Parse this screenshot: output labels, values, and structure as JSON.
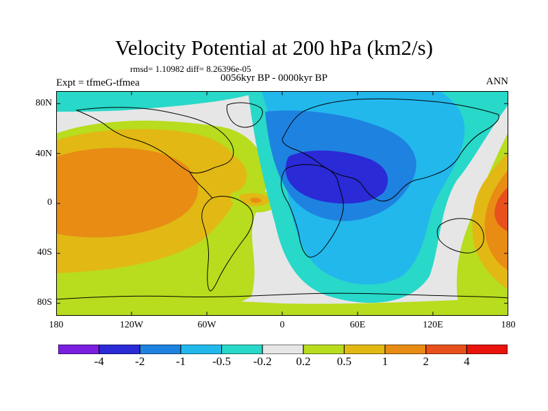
{
  "map": {
    "title": "Velocity Potential at 200 hPa (km2/s)",
    "stats_line": "rmsd= 1.10982 diff= 8.26396e-05",
    "experiment": "Expt = tfmeG-tfmea",
    "period": "0056kyr BP - 0000kyr BP",
    "season": "ANN",
    "projection": "cylindrical-equidistant",
    "lon_range": [
      -180,
      180
    ],
    "lat_range": [
      -90,
      90
    ],
    "lat_ticks": [
      "80N",
      "40N",
      "0",
      "40S",
      "80S"
    ],
    "lon_ticks": [
      "180",
      "120W",
      "60W",
      "0",
      "60E",
      "120E",
      "180"
    ],
    "colorbar": {
      "levels": [
        "-4",
        "-2",
        "-1",
        "-0.5",
        "-0.2",
        "0.2",
        "0.5",
        "1",
        "2",
        "4"
      ],
      "colors": [
        "#7a1fe0",
        "#2a2ad6",
        "#1e82e0",
        "#22b8ec",
        "#28d8c8",
        "#e6e6e6",
        "#b8dc1e",
        "#e2b814",
        "#e88c14",
        "#e8501c",
        "#e8140c"
      ]
    }
  }
}
